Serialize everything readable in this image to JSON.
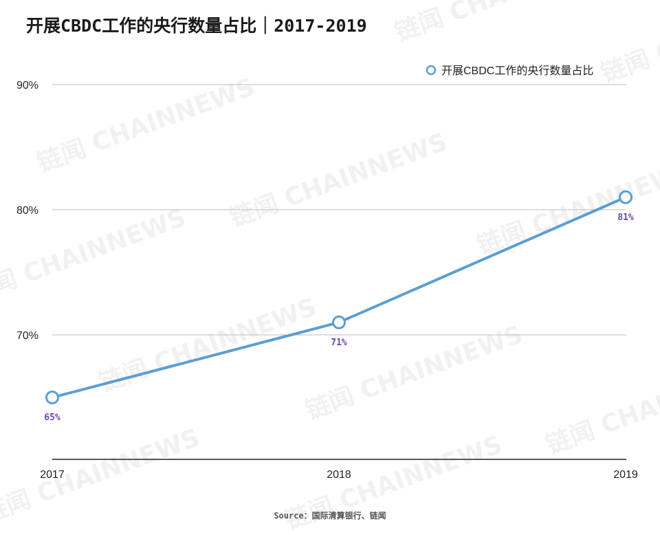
{
  "chart_data": {
    "type": "line",
    "title": "开展CBDC工作的央行数量占比｜2017-2019",
    "categories": [
      "2017",
      "2018",
      "2019"
    ],
    "series": [
      {
        "name": "开展CBDC工作的央行数量占比",
        "values": [
          65,
          71,
          81
        ],
        "data_labels": [
          "65%",
          "71%",
          "81%"
        ]
      }
    ],
    "y_ticks": [
      "70%",
      "80%",
      "90%"
    ],
    "ylim": [
      60,
      90
    ],
    "grid": true,
    "legend_position": "top-right",
    "source": "Source：国际清算银行、链闻",
    "watermark": "链闻 CHAINNEWS"
  },
  "colors": {
    "line": "#5a9fd4",
    "data_label": "#6b46a8",
    "grid": "#bdbdbd",
    "baseline": "#222222"
  }
}
